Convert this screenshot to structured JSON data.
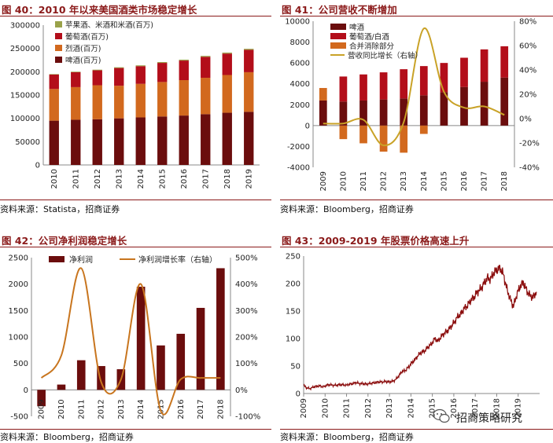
{
  "panels": [
    {
      "id": "fig40",
      "title": "图 40：2010 年以来美国酒类市场稳定增长",
      "source": "资料来源：Statista，招商证券"
    },
    {
      "id": "fig41",
      "title": "图 41：公司营收不断增加",
      "source": "资料来源：Bloomberg，招商证券"
    },
    {
      "id": "fig42",
      "title": "图 42：公司净利润稳定增长",
      "source": "资料来源：Bloomberg，招商证券"
    },
    {
      "id": "fig43",
      "title": "图 43：2009-2019 年股票价格高速上升",
      "source": "资料来源：Bloomberg，招商证券"
    }
  ],
  "watermark": "招商策略研究",
  "chart_data": [
    {
      "type": "bar",
      "stacked": true,
      "categories": [
        "2010",
        "2011",
        "2012",
        "2013",
        "2014",
        "2015",
        "2016",
        "2017",
        "2018",
        "2019"
      ],
      "ylim": [
        0,
        300000
      ],
      "yticks": [
        "0",
        "50000",
        "100000",
        "150000",
        "200000",
        "250000",
        "300000"
      ],
      "legend_position": "top-left",
      "series": [
        {
          "name": "啤酒(百万)",
          "color": "#6b0d0d",
          "values": [
            95000,
            97000,
            98000,
            100000,
            102000,
            104000,
            106000,
            109000,
            112000,
            114000
          ]
        },
        {
          "name": "烈酒(百万)",
          "color": "#d2691e",
          "values": [
            68000,
            70000,
            73000,
            70000,
            72000,
            74000,
            76000,
            78000,
            81000,
            85000
          ]
        },
        {
          "name": "葡萄酒(百万)",
          "color": "#b30e1a",
          "values": [
            31000,
            32000,
            32000,
            38000,
            38000,
            41000,
            42000,
            45000,
            46000,
            48000
          ]
        },
        {
          "name": "苹果酒、米酒和米酒(百万)",
          "color": "#9aa24a",
          "values": [
            1000,
            1200,
            1400,
            1600,
            1700,
            1800,
            1900,
            2000,
            2100,
            2200
          ]
        }
      ]
    },
    {
      "type": "bar",
      "stacked": true,
      "categories": [
        "2009",
        "2010",
        "2011",
        "2012",
        "2013",
        "2014",
        "2015",
        "2016",
        "2017",
        "2018"
      ],
      "ylim": [
        -4000,
        10000
      ],
      "yticks": [
        "-4000",
        "-2000",
        "0",
        "2000",
        "4000",
        "6000",
        "8000",
        "10000"
      ],
      "y2lim": [
        -40,
        80
      ],
      "y2ticks": [
        "-40%",
        "-20%",
        "0%",
        "20%",
        "40%",
        "60%",
        "80%"
      ],
      "legend_position": "top-left",
      "series": [
        {
          "name": "啤酒",
          "color": "#6b0d0d",
          "values": [
            2400,
            2300,
            2400,
            2500,
            2600,
            2900,
            3200,
            3700,
            4200,
            4600
          ]
        },
        {
          "name": "葡萄酒/白酒",
          "color": "#b30e1a",
          "values": [
            0,
            2400,
            2500,
            2600,
            2800,
            2800,
            2800,
            2800,
            3100,
            3000
          ]
        },
        {
          "name": "合并消除部分",
          "color": "#d2691e",
          "values": [
            1200,
            -1300,
            -1700,
            -2500,
            -2600,
            -800,
            0,
            0,
            0,
            0
          ]
        },
        {
          "name": "营收同比增长（右轴）",
          "color": "#c9a227",
          "type": "line",
          "axis": "right",
          "values": [
            -4,
            -4,
            -1,
            -22,
            -3,
            74,
            22,
            9,
            10,
            3
          ]
        }
      ]
    },
    {
      "type": "bar",
      "categories": [
        "2009",
        "2010",
        "2011",
        "2012",
        "2013",
        "2014",
        "2015",
        "2016",
        "2017",
        "2018"
      ],
      "ylim": [
        -500,
        2500
      ],
      "yticks": [
        "-500",
        "0",
        "500",
        "1000",
        "1500",
        "2000",
        "2500"
      ],
      "y2lim": [
        -100,
        500
      ],
      "y2ticks": [
        "-100%",
        "0%",
        "100%",
        "200%",
        "300%",
        "400%",
        "500%"
      ],
      "legend_position": "top-left",
      "series": [
        {
          "name": "净利润",
          "color": "#6b0d0d",
          "values": [
            -310,
            100,
            560,
            450,
            390,
            1950,
            840,
            1060,
            1550,
            2300
          ]
        },
        {
          "name": "净利润增长率（右轴）",
          "color": "#c8751e",
          "type": "line",
          "axis": "right",
          "values": [
            45,
            130,
            460,
            30,
            40,
            400,
            -80,
            40,
            45,
            45
          ]
        }
      ]
    },
    {
      "type": "line",
      "x_start": 2009,
      "x_end": 2020,
      "xticks": [
        "2009",
        "2010",
        "2011",
        "2012",
        "2013",
        "2014",
        "2015",
        "2016",
        "2017",
        "2018",
        "2019"
      ],
      "ylim": [
        0,
        250
      ],
      "yticks": [
        "0",
        "50",
        "100",
        "150",
        "200",
        "250"
      ],
      "series": [
        {
          "name": "",
          "color": "#8b0d0d",
          "values": [
            15,
            10,
            9,
            12,
            13,
            14,
            12,
            15,
            16,
            15,
            15,
            16,
            16,
            15,
            17,
            18,
            20,
            18,
            18,
            17,
            18,
            19,
            20,
            21,
            21,
            22,
            21,
            22,
            25,
            32,
            40,
            42,
            48,
            56,
            62,
            70,
            75,
            78,
            85,
            90,
            100,
            95,
            104,
            110,
            115,
            122,
            130,
            140,
            145,
            155,
            160,
            170,
            175,
            185,
            190,
            200,
            210,
            208,
            220,
            225,
            228,
            215,
            190,
            172,
            158,
            180,
            195,
            202,
            188,
            178,
            175,
            185
          ]
        }
      ]
    }
  ]
}
